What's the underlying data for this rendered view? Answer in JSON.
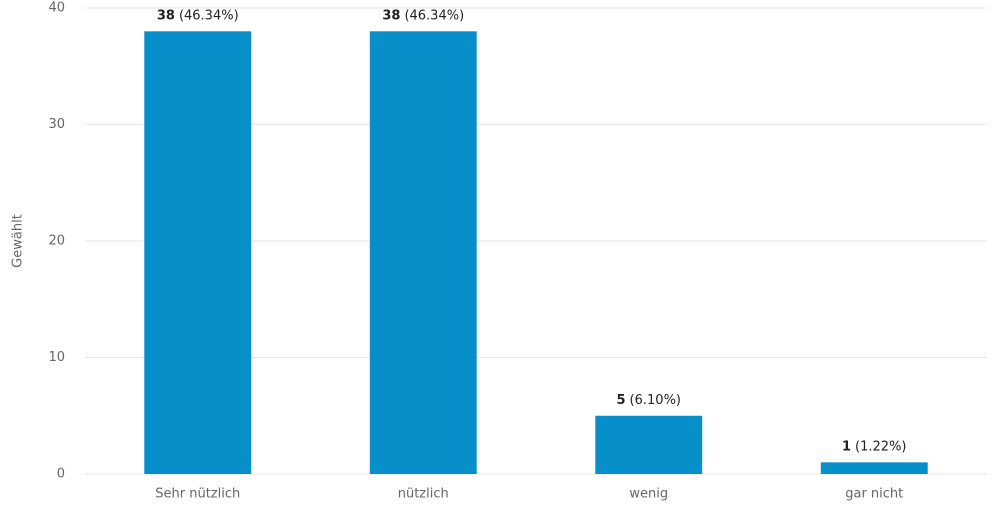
{
  "chart_data": {
    "type": "bar",
    "y_label": "Gewählt",
    "categories": [
      "Sehr nützlich",
      "nützlich",
      "wenig",
      "gar nicht"
    ],
    "values": [
      38,
      38,
      5,
      1
    ],
    "percent_labels": [
      "(46.34%)",
      "(46.34%)",
      "(6.10%)",
      "(1.22%)"
    ],
    "color": "#078fc9",
    "ylim": [
      0,
      40
    ],
    "yticks": [
      0,
      10,
      20,
      30,
      40
    ],
    "grid": true
  }
}
